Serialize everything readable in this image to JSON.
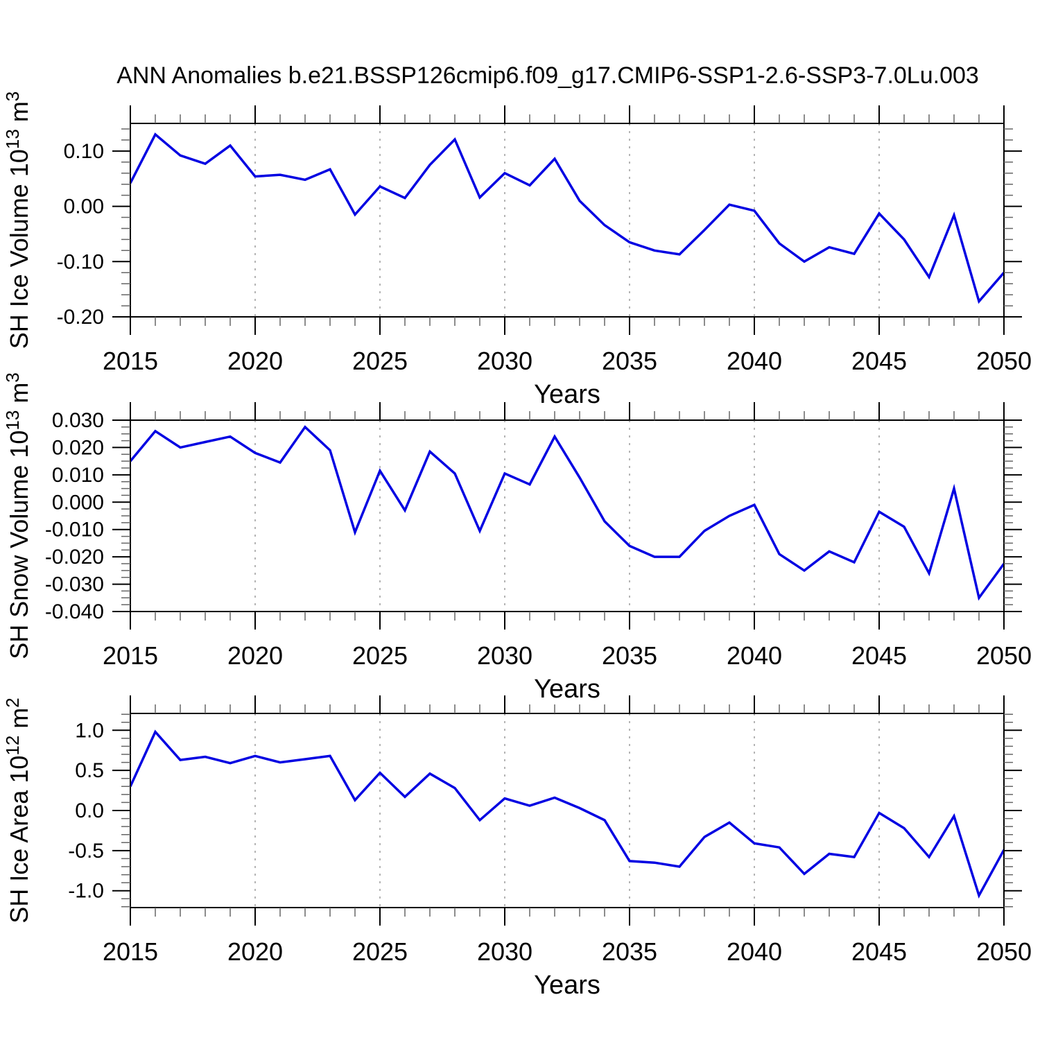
{
  "page": {
    "title": "ANN Anomalies b.e21.BSSP126cmip6.f09_g17.CMIP6-SSP1-2.6-SSP3-7.0Lu.003"
  },
  "colors": {
    "line": "#0202e2",
    "frame": "#000000",
    "grid": "#8c8c8c"
  },
  "chart_data": [
    {
      "type": "line",
      "title": "",
      "xlabel": "Years",
      "ylabel": "SH Ice Volume 10^13 m^3",
      "ylabel_parts": [
        {
          "t": "SH Ice Volume 10"
        },
        {
          "t": "13",
          "sup": true
        },
        {
          "t": " m"
        },
        {
          "t": "3",
          "sup": true
        }
      ],
      "xlim": [
        2015,
        2050
      ],
      "ylim": [
        -0.2,
        0.15
      ],
      "xticks": [
        2015,
        2020,
        2025,
        2030,
        2035,
        2040,
        2045,
        2050
      ],
      "xtick_labels": [
        "2015",
        "2020",
        "2025",
        "2030",
        "2035",
        "2040",
        "2045",
        "2050"
      ],
      "xtick_minor_step": 1,
      "grid_years": [
        2020,
        2025,
        2030,
        2035,
        2040,
        2045
      ],
      "yticks": [
        {
          "v": 0.1,
          "label": "0.10"
        },
        {
          "v": 0.0,
          "label": "0.00"
        },
        {
          "v": -0.1,
          "label": "-0.10"
        },
        {
          "v": -0.2,
          "label": "-0.20"
        }
      ],
      "ytick_minor_step": 0.02,
      "x": [
        2015,
        2016,
        2017,
        2018,
        2019,
        2020,
        2021,
        2022,
        2023,
        2024,
        2025,
        2026,
        2027,
        2028,
        2029,
        2030,
        2031,
        2032,
        2033,
        2034,
        2035,
        2036,
        2037,
        2038,
        2039,
        2040,
        2041,
        2042,
        2043,
        2044,
        2045,
        2046,
        2047,
        2048,
        2049,
        2050
      ],
      "values": [
        0.042,
        0.13,
        0.092,
        0.077,
        0.11,
        0.054,
        0.057,
        0.048,
        0.067,
        -0.015,
        0.036,
        0.015,
        0.075,
        0.121,
        0.016,
        0.06,
        0.038,
        0.086,
        0.01,
        -0.034,
        -0.065,
        -0.08,
        -0.087,
        -0.043,
        0.003,
        -0.008,
        -0.067,
        -0.1,
        -0.074,
        -0.086,
        -0.013,
        -0.06,
        -0.128,
        -0.016,
        -0.172,
        -0.12
      ]
    },
    {
      "type": "line",
      "title": "",
      "xlabel": "Years",
      "ylabel": "SH Snow Volume 10^13 m^3",
      "ylabel_parts": [
        {
          "t": "SH Snow Volume 10"
        },
        {
          "t": "13",
          "sup": true
        },
        {
          "t": " m"
        },
        {
          "t": "3",
          "sup": true
        }
      ],
      "xlim": [
        2015,
        2050
      ],
      "ylim": [
        -0.04,
        0.03
      ],
      "xticks": [
        2015,
        2020,
        2025,
        2030,
        2035,
        2040,
        2045,
        2050
      ],
      "xtick_labels": [
        "2015",
        "2020",
        "2025",
        "2030",
        "2035",
        "2040",
        "2045",
        "2050"
      ],
      "xtick_minor_step": 1,
      "grid_years": [
        2020,
        2025,
        2030,
        2035,
        2040,
        2045
      ],
      "yticks": [
        {
          "v": 0.03,
          "label": "0.030"
        },
        {
          "v": 0.02,
          "label": "0.020"
        },
        {
          "v": 0.01,
          "label": "0.010"
        },
        {
          "v": 0.0,
          "label": "0.000"
        },
        {
          "v": -0.01,
          "label": "-0.010"
        },
        {
          "v": -0.02,
          "label": "-0.020"
        },
        {
          "v": -0.03,
          "label": "-0.030"
        },
        {
          "v": -0.04,
          "label": "-0.040"
        }
      ],
      "ytick_minor_step": 0.0025,
      "x": [
        2015,
        2016,
        2017,
        2018,
        2019,
        2020,
        2021,
        2022,
        2023,
        2024,
        2025,
        2026,
        2027,
        2028,
        2029,
        2030,
        2031,
        2032,
        2033,
        2034,
        2035,
        2036,
        2037,
        2038,
        2039,
        2040,
        2041,
        2042,
        2043,
        2044,
        2045,
        2046,
        2047,
        2048,
        2049,
        2050
      ],
      "values": [
        0.015,
        0.026,
        0.02,
        0.022,
        0.024,
        0.018,
        0.0145,
        0.0275,
        0.019,
        -0.011,
        0.0115,
        -0.003,
        0.0185,
        0.0105,
        -0.0105,
        0.0105,
        0.0065,
        0.024,
        0.009,
        -0.007,
        -0.016,
        -0.02,
        -0.02,
        -0.0105,
        -0.005,
        -0.001,
        -0.019,
        -0.025,
        -0.018,
        -0.022,
        -0.0035,
        -0.009,
        -0.026,
        0.005,
        -0.035,
        -0.0225
      ]
    },
    {
      "type": "line",
      "title": "",
      "xlabel": "Years",
      "ylabel": "SH Ice Area 10^12 m^2",
      "ylabel_parts": [
        {
          "t": "SH Ice Area 10"
        },
        {
          "t": "12",
          "sup": true
        },
        {
          "t": " m"
        },
        {
          "t": "2",
          "sup": true
        }
      ],
      "xlim": [
        2015,
        2050
      ],
      "ylim": [
        -1.21,
        1.21
      ],
      "xticks": [
        2015,
        2020,
        2025,
        2030,
        2035,
        2040,
        2045,
        2050
      ],
      "xtick_labels": [
        "2015",
        "2020",
        "2025",
        "2030",
        "2035",
        "2040",
        "2045",
        "2050"
      ],
      "xtick_minor_step": 1,
      "grid_years": [
        2020,
        2025,
        2030,
        2035,
        2040,
        2045
      ],
      "yticks": [
        {
          "v": 1.0,
          "label": "1.0"
        },
        {
          "v": 0.5,
          "label": "0.5"
        },
        {
          "v": 0.0,
          "label": "0.0"
        },
        {
          "v": -0.5,
          "label": "-0.5"
        },
        {
          "v": -1.0,
          "label": "-1.0"
        }
      ],
      "ytick_minor_step": 0.1,
      "x": [
        2015,
        2016,
        2017,
        2018,
        2019,
        2020,
        2021,
        2022,
        2023,
        2024,
        2025,
        2026,
        2027,
        2028,
        2029,
        2030,
        2031,
        2032,
        2033,
        2034,
        2035,
        2036,
        2037,
        2038,
        2039,
        2040,
        2041,
        2042,
        2043,
        2044,
        2045,
        2046,
        2047,
        2048,
        2049,
        2050
      ],
      "values": [
        0.3,
        0.98,
        0.63,
        0.67,
        0.59,
        0.68,
        0.6,
        0.64,
        0.68,
        0.13,
        0.47,
        0.17,
        0.46,
        0.28,
        -0.12,
        0.15,
        0.06,
        0.16,
        0.03,
        -0.12,
        -0.63,
        -0.65,
        -0.7,
        -0.33,
        -0.15,
        -0.41,
        -0.46,
        -0.79,
        -0.54,
        -0.58,
        -0.03,
        -0.22,
        -0.58,
        -0.07,
        -1.06,
        -0.49
      ]
    }
  ]
}
